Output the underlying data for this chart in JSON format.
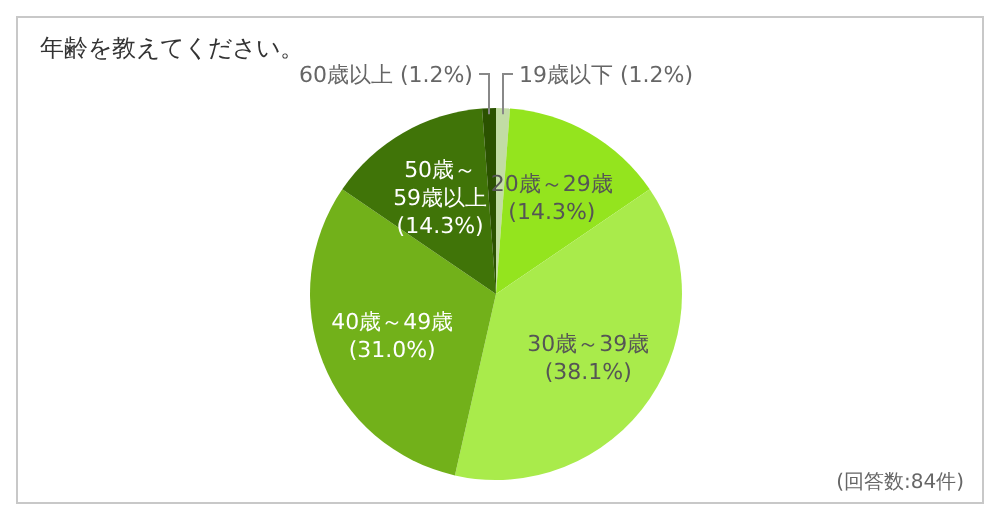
{
  "chart_data": {
    "type": "pie",
    "title": "年齢を教えてください。",
    "categories": [
      "19歳以下",
      "20歳～29歳",
      "30歳～39歳",
      "40歳～49歳",
      "50歳～59歳以上",
      "60歳以上"
    ],
    "values": [
      1.2,
      14.3,
      38.1,
      31.0,
      14.3,
      1.2
    ],
    "colors": [
      "#c2dca4",
      "#94e41e",
      "#a9eb4b",
      "#72b11a",
      "#407408",
      "#2b5200"
    ],
    "value_labels": [
      "(1.2%)",
      "(14.3%)",
      "(38.1%)",
      "(31.0%)",
      "(14.3%)",
      "(1.2%)"
    ],
    "annotations": [
      "(回答数:84件)"
    ]
  }
}
